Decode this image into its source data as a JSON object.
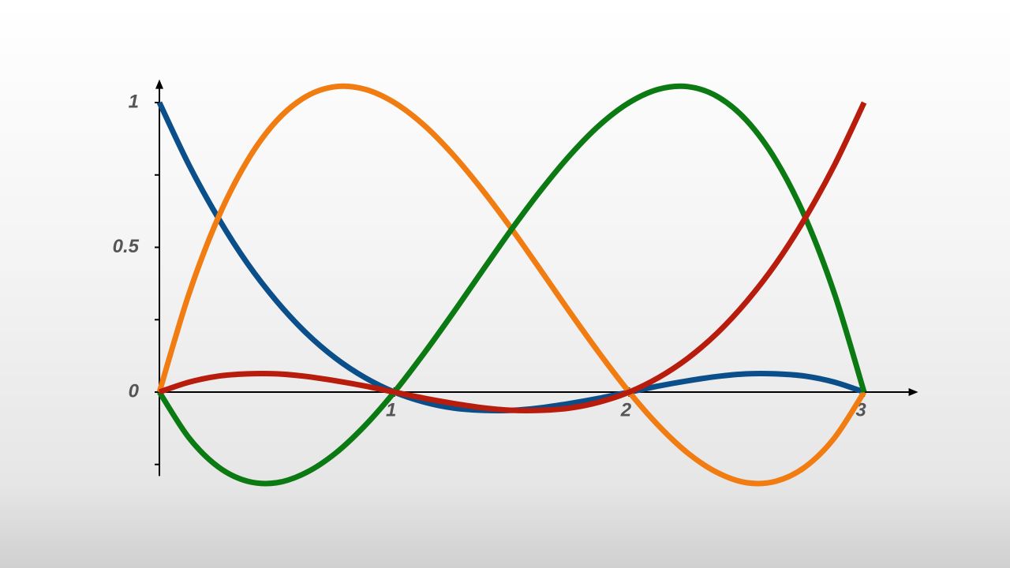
{
  "chart_data": {
    "type": "line",
    "x": [
      0,
      0.125,
      0.25,
      0.375,
      0.5,
      0.625,
      0.75,
      0.875,
      1,
      1.125,
      1.25,
      1.375,
      1.5,
      1.625,
      1.75,
      1.875,
      2,
      2.125,
      2.25,
      2.375,
      2.5,
      2.625,
      2.75,
      2.875,
      3
    ],
    "series": [
      {
        "color": "#0b4f8a",
        "values": [
          1,
          0.786,
          0.602,
          0.444,
          0.313,
          0.204,
          0.117,
          0.05,
          0,
          -0.034,
          -0.055,
          -0.063,
          -0.063,
          -0.054,
          -0.039,
          -0.021,
          0,
          0.021,
          0.039,
          0.054,
          0.063,
          0.063,
          0.055,
          0.034,
          0
        ]
      },
      {
        "color": "#f07c12",
        "values": [
          0,
          0.337,
          0.602,
          0.8,
          0.938,
          1.021,
          1.055,
          1.046,
          1,
          0.923,
          0.82,
          0.698,
          0.563,
          0.419,
          0.273,
          0.132,
          0,
          -0.116,
          -0.211,
          -0.278,
          -0.313,
          -0.308,
          -0.258,
          -0.157,
          0
        ]
      },
      {
        "color": "#0b7a12",
        "values": [
          0,
          -0.157,
          -0.258,
          -0.308,
          -0.313,
          -0.278,
          -0.211,
          -0.116,
          0,
          0.132,
          0.273,
          0.419,
          0.563,
          0.698,
          0.82,
          0.923,
          1,
          1.046,
          1.055,
          1.021,
          0.938,
          0.8,
          0.602,
          0.337,
          0
        ]
      },
      {
        "color": "#b81c0c",
        "values": [
          0,
          0.034,
          0.055,
          0.063,
          0.063,
          0.054,
          0.039,
          0.021,
          0,
          -0.021,
          -0.039,
          -0.054,
          -0.063,
          -0.063,
          -0.055,
          -0.034,
          0,
          0.05,
          0.117,
          0.204,
          0.313,
          0.444,
          0.602,
          0.786,
          1
        ]
      }
    ],
    "xlim": [
      0,
      3.23
    ],
    "ylim": [
      -0.29,
      1.08
    ],
    "xticks": [
      1,
      2,
      3
    ],
    "yticks": [
      0,
      0.5,
      1
    ],
    "yminor_ticks": [
      -0.25,
      0.25,
      0.75
    ]
  }
}
